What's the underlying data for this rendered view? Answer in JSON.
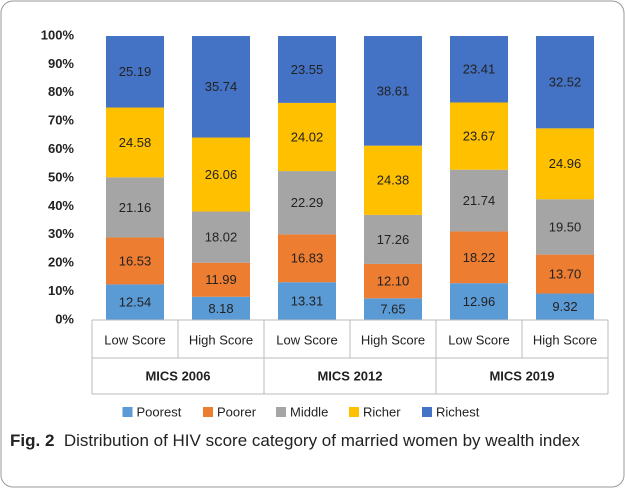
{
  "chart_data": {
    "type": "stacked_bar",
    "categories": [
      "Low Score",
      "High Score",
      "Low Score",
      "High Score",
      "Low Score",
      "High Score"
    ],
    "groups": [
      "MICS 2006",
      "MICS 2012",
      "MICS 2019"
    ],
    "series": [
      {
        "name": "Poorest",
        "color": "#5b9bd5",
        "values": [
          12.54,
          8.18,
          13.31,
          7.65,
          12.96,
          9.32
        ],
        "value_labels": [
          "12.54",
          "8.18",
          "13.31",
          "7.65",
          "12.96",
          "9.32"
        ]
      },
      {
        "name": "Poorer",
        "color": "#ed7d31",
        "values": [
          16.53,
          11.99,
          16.83,
          12.1,
          18.22,
          13.7
        ],
        "value_labels": [
          "16.53",
          "11.99",
          "16.83",
          "12.10",
          "18.22",
          "13.70"
        ]
      },
      {
        "name": "Middle",
        "color": "#a5a5a5",
        "values": [
          21.16,
          18.02,
          22.29,
          17.26,
          21.74,
          19.5
        ],
        "value_labels": [
          "21.16",
          "18.02",
          "22.29",
          "17.26",
          "21.74",
          "19.50"
        ]
      },
      {
        "name": "Richer",
        "color": "#ffc000",
        "values": [
          24.58,
          26.06,
          24.02,
          24.38,
          23.67,
          24.96
        ],
        "value_labels": [
          "24.58",
          "26.06",
          "24.02",
          "24.38",
          "23.67",
          "24.96"
        ]
      },
      {
        "name": "Richest",
        "color": "#4472c4",
        "values": [
          25.19,
          35.74,
          23.55,
          38.61,
          23.41,
          32.52
        ],
        "value_labels": [
          "25.19",
          "35.74",
          "23.55",
          "38.61",
          "23.41",
          "32.52"
        ]
      }
    ],
    "ylim": [
      0,
      100
    ],
    "yticks": [
      {
        "value": 0,
        "label": "0%"
      },
      {
        "value": 10,
        "label": "10%"
      },
      {
        "value": 20,
        "label": "20%"
      },
      {
        "value": 30,
        "label": "30%"
      },
      {
        "value": 40,
        "label": "40%"
      },
      {
        "value": 50,
        "label": "50%"
      },
      {
        "value": 60,
        "label": "60%"
      },
      {
        "value": 70,
        "label": "70%"
      },
      {
        "value": 80,
        "label": "80%"
      },
      {
        "value": 90,
        "label": "90%"
      },
      {
        "value": 100,
        "label": "100%"
      }
    ],
    "legend": "bottom",
    "caption": {
      "label": "Fig. 2",
      "text": "Distribution of HIV score category of married women by wealth index"
    }
  }
}
